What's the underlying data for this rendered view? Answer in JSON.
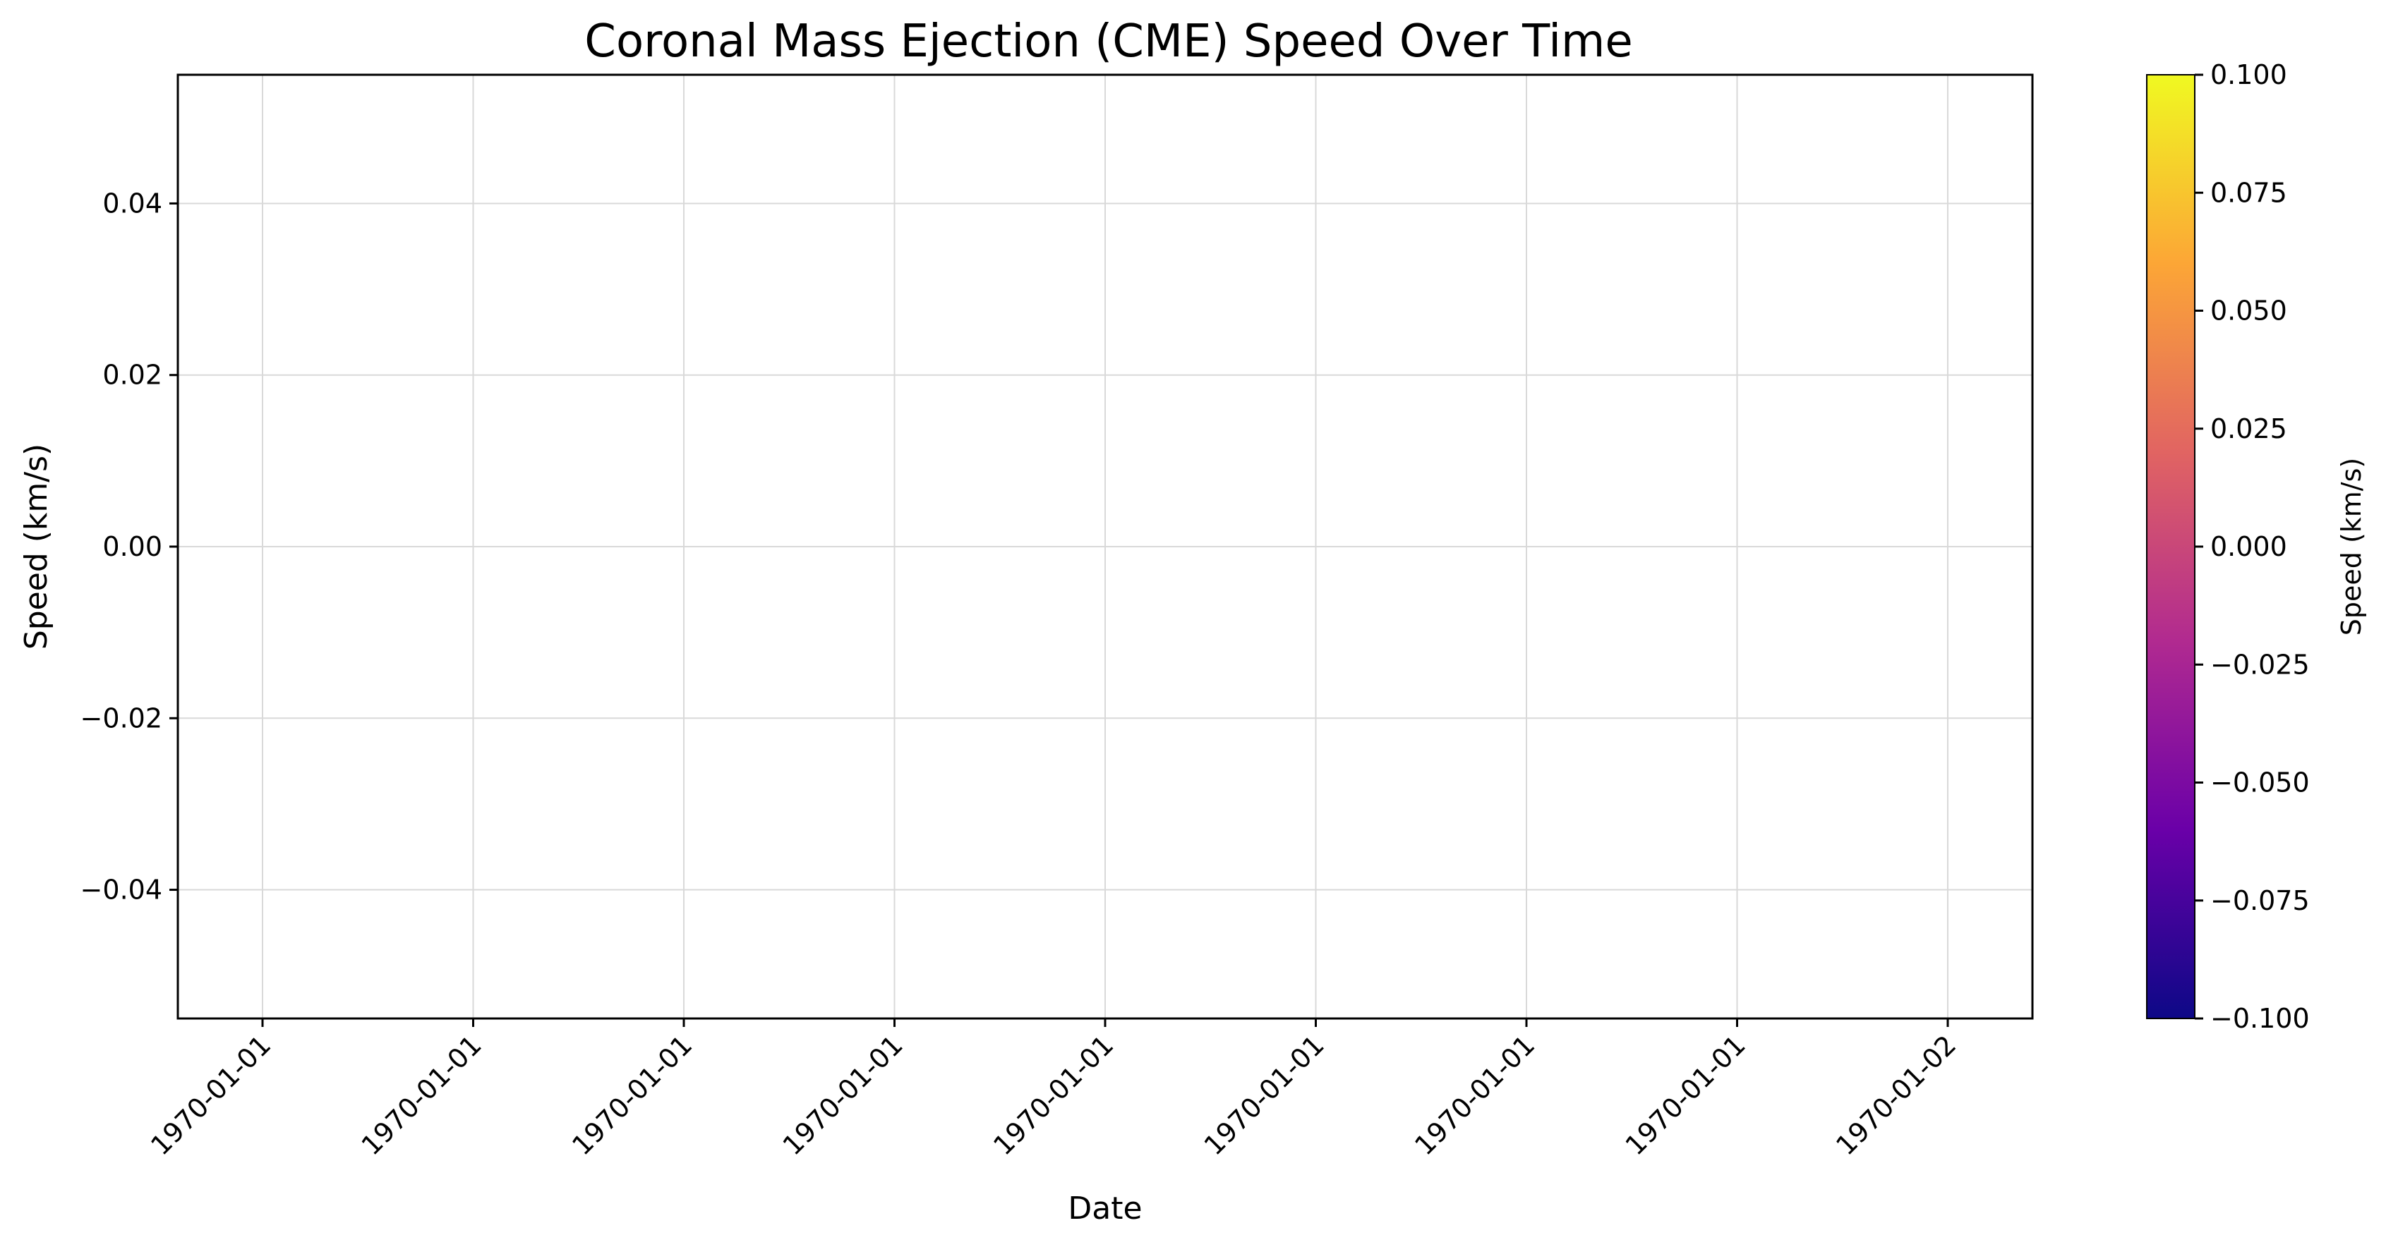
{
  "chart_data": {
    "type": "scatter",
    "title": "Coronal Mass Ejection (CME) Speed Over Time",
    "xlabel": "Date",
    "ylabel": "Speed (km/s)",
    "x_tick_labels": [
      "1970-01-01",
      "1970-01-01",
      "1970-01-01",
      "1970-01-01",
      "1970-01-01",
      "1970-01-01",
      "1970-01-01",
      "1970-01-01",
      "1970-01-02"
    ],
    "y_ticks": [
      0.04,
      0.02,
      0.0,
      -0.02,
      -0.04
    ],
    "y_tick_labels": [
      "0.04",
      "0.02",
      "0.00",
      "−0.02",
      "−0.04"
    ],
    "ylim": [
      -0.055,
      0.055
    ],
    "grid": true,
    "series": [
      {
        "x": [],
        "y": []
      }
    ],
    "colorbar": {
      "label": "Speed (km/s)",
      "colormap": "plasma",
      "range": [
        -0.1,
        0.1
      ],
      "ticks": [
        0.1,
        0.075,
        0.05,
        0.025,
        0.0,
        -0.025,
        -0.05,
        -0.075,
        -0.1
      ],
      "tick_labels": [
        "0.100",
        "0.075",
        "0.050",
        "0.025",
        "0.000",
        "−0.025",
        "−0.050",
        "−0.075",
        "−0.100"
      ],
      "colors": [
        "#0d0887",
        "#6a00a8",
        "#b12a90",
        "#e16462",
        "#fca636",
        "#f0f921"
      ]
    },
    "colors": {
      "grid": "#d9d9d9",
      "frame": "#000000"
    }
  }
}
